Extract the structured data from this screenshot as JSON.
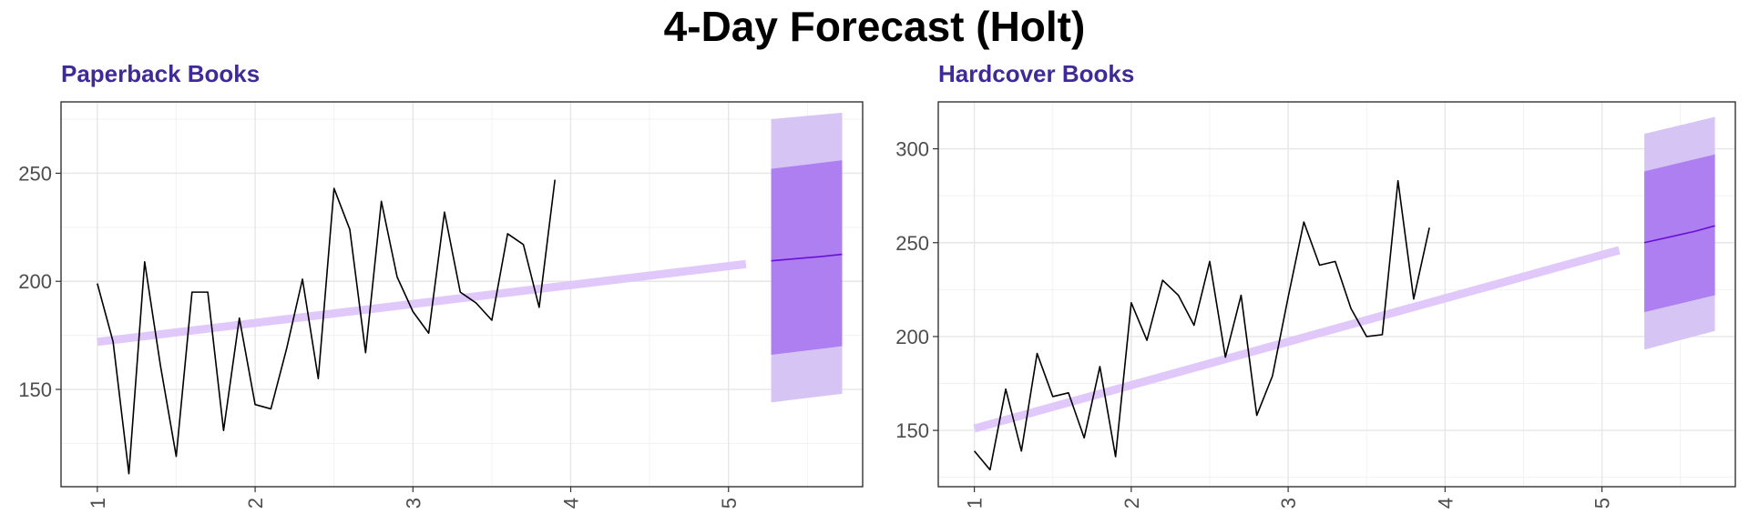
{
  "title": "4-Day Forecast (Holt)",
  "colors": {
    "series_line": "#000000",
    "fitted": "#e0c8fb",
    "interval_80": "#ad7ff0",
    "interval_95": "#d6c4f5",
    "forecast_mean": "#6a0fd6",
    "panel_title": "#3f2a96"
  },
  "chart_data": [
    {
      "type": "line",
      "title": "Paperback Books",
      "x_ticks": [
        1,
        2,
        3,
        4,
        5
      ],
      "y_ticks": [
        150,
        200,
        250
      ],
      "xlim": [
        0.77,
        5.85
      ],
      "ylim": [
        105,
        283
      ],
      "grid": true,
      "series": [
        {
          "role": "observed",
          "x": [
            1,
            1.1,
            1.2,
            1.3,
            1.4,
            1.5,
            1.6,
            1.7,
            1.8,
            1.9,
            2,
            2.1,
            2.2,
            2.3,
            2.4,
            2.5,
            2.6,
            2.7,
            2.8,
            2.9,
            3,
            3.1,
            3.2,
            3.3,
            3.4,
            3.5,
            3.6,
            3.7,
            3.8,
            3.9,
            4,
            4.1,
            4.2,
            4.3,
            4.4,
            4.5,
            4.6,
            4.7,
            4.8,
            4.9,
            5
          ],
          "y": [
            199,
            172,
            111,
            209,
            161,
            119,
            195,
            195,
            131,
            183,
            143,
            141,
            169,
            201,
            155,
            243,
            224,
            167,
            237,
            202,
            186,
            176,
            232,
            195,
            190,
            182,
            222,
            217,
            188,
            247,
            null,
            null,
            null,
            null,
            null,
            null,
            null,
            null,
            null,
            null,
            null
          ]
        },
        {
          "role": "fitted",
          "x": [
            1,
            5.11
          ],
          "y": [
            172,
            208
          ]
        },
        {
          "role": "forecast_mean",
          "x": [
            5.27,
            5.43,
            5.59,
            5.72
          ],
          "y": [
            209.5,
            210.5,
            211.5,
            212.5
          ]
        },
        {
          "role": "interval_80",
          "x": [
            5.27,
            5.72
          ],
          "lower": [
            166,
            170
          ],
          "upper": [
            252,
            256
          ]
        },
        {
          "role": "interval_95",
          "x": [
            5.27,
            5.72
          ],
          "lower": [
            144,
            148
          ],
          "upper": [
            275,
            278
          ]
        }
      ]
    },
    {
      "type": "line",
      "title": "Hardcover Books",
      "x_ticks": [
        1,
        2,
        3,
        4,
        5
      ],
      "y_ticks": [
        150,
        200,
        250,
        300
      ],
      "xlim": [
        0.77,
        5.85
      ],
      "ylim": [
        120,
        325
      ],
      "grid": true,
      "series": [
        {
          "role": "observed",
          "x": [
            1,
            1.1,
            1.2,
            1.3,
            1.4,
            1.5,
            1.6,
            1.7,
            1.8,
            1.9,
            2,
            2.1,
            2.2,
            2.3,
            2.4,
            2.5,
            2.6,
            2.7,
            2.8,
            2.9,
            3,
            3.1,
            3.2,
            3.3,
            3.4,
            3.5,
            3.6,
            3.7,
            3.8,
            3.9,
            4,
            4.1,
            4.2,
            4.3,
            4.4,
            4.5,
            4.6,
            4.7,
            4.8,
            4.9,
            5
          ],
          "y": [
            139,
            129,
            172,
            139,
            191,
            168,
            170,
            146,
            184,
            136,
            218,
            198,
            230,
            222,
            206,
            240,
            189,
            222,
            158,
            179,
            221,
            261,
            238,
            240,
            215,
            200,
            201,
            283,
            220,
            258,
            null,
            null,
            null,
            null,
            null,
            null,
            null,
            null,
            null,
            null,
            null
          ]
        },
        {
          "role": "fitted",
          "x": [
            1,
            5.11
          ],
          "y": [
            151,
            246
          ]
        },
        {
          "role": "forecast_mean",
          "x": [
            5.27,
            5.43,
            5.59,
            5.72
          ],
          "y": [
            250,
            253,
            256,
            259
          ]
        },
        {
          "role": "interval_80",
          "x": [
            5.27,
            5.72
          ],
          "lower": [
            213,
            222
          ],
          "upper": [
            288,
            297
          ]
        },
        {
          "role": "interval_95",
          "x": [
            5.27,
            5.72
          ],
          "lower": [
            193,
            203
          ],
          "upper": [
            308,
            317
          ]
        }
      ]
    }
  ]
}
